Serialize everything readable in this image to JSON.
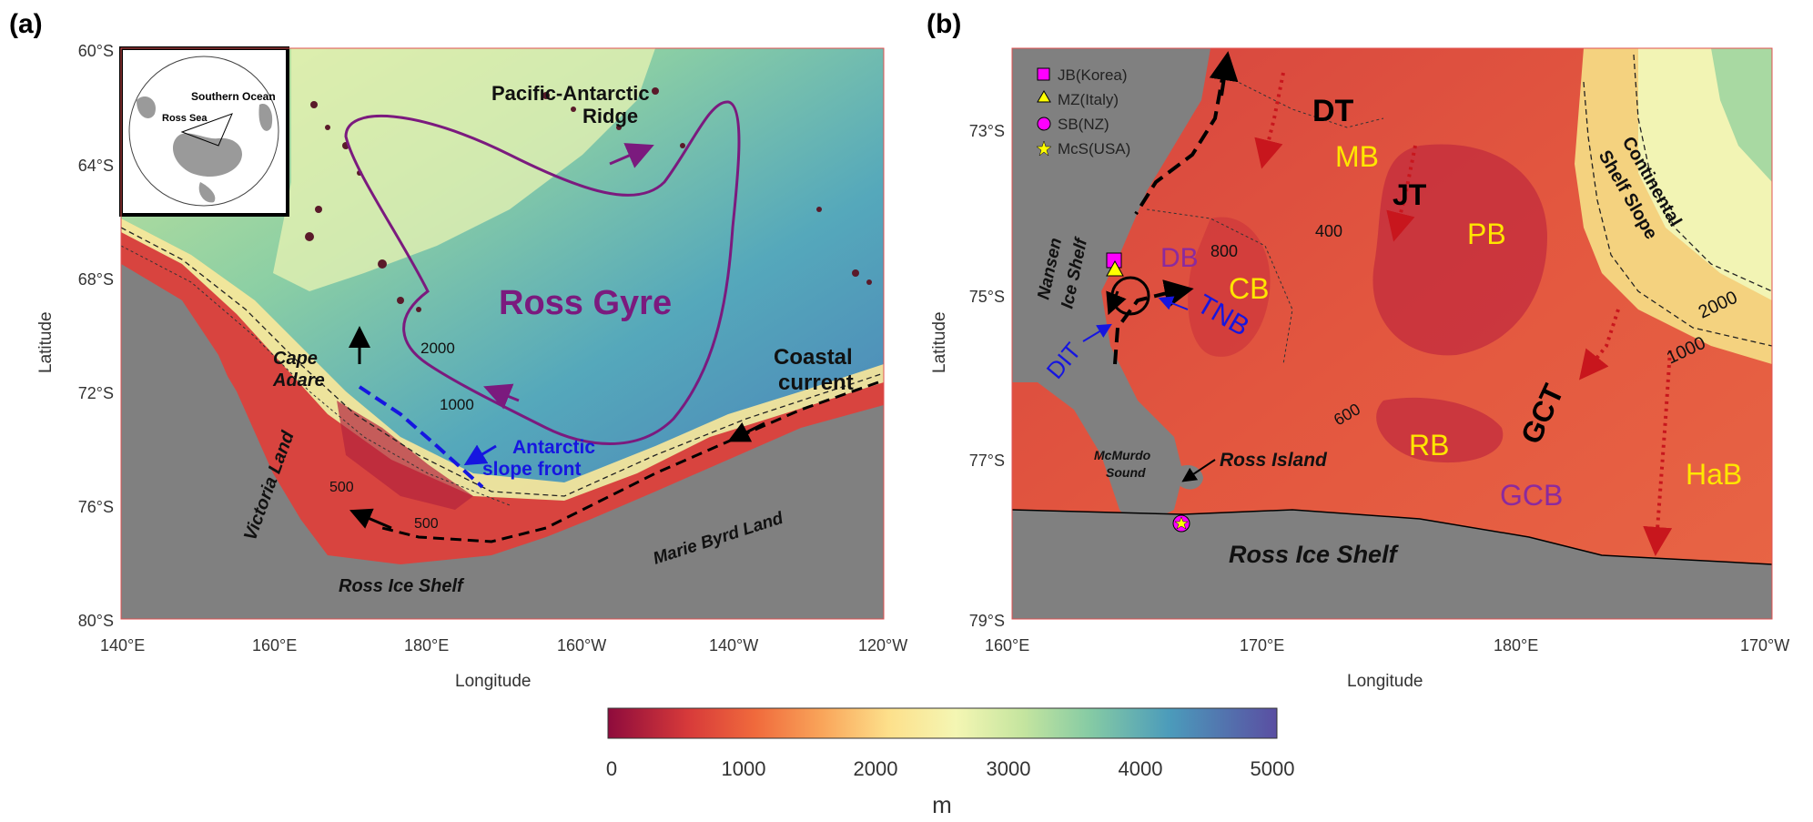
{
  "panel_a": {
    "label": "(a)",
    "xlabel": "Longitude",
    "ylabel": "Latitude",
    "x_ticks": [
      "140°E",
      "160°E",
      "180°E",
      "160°W",
      "140°W",
      "120°W"
    ],
    "y_ticks": [
      "60°S",
      "64°S",
      "68°S",
      "72°S",
      "76°S",
      "80°S"
    ],
    "inset": {
      "southern_ocean": "Southern Ocean",
      "ross_sea": "Ross Sea"
    },
    "labels": {
      "ross_gyre": "Ross Gyre",
      "pacific_antarctic": "Pacific-Antarctic",
      "ridge": "Ridge",
      "coastal": "Coastal",
      "current": "current",
      "antarctic": "Antarctic",
      "slope_front": "slope front",
      "cape": "Cape",
      "adare": "Adare",
      "victoria_land": "Victoria Land",
      "ross_ice_shelf": "Ross Ice Shelf",
      "marie_byrd_land": "Marie Byrd Land",
      "c2000": "2000",
      "c1000": "1000",
      "c500a": "500",
      "c500b": "500"
    }
  },
  "panel_b": {
    "label": "(b)",
    "xlabel": "Longitude",
    "ylabel": "Latitude",
    "x_ticks": [
      "160°E",
      "170°E",
      "180°E",
      "170°W"
    ],
    "y_ticks": [
      "73°S",
      "75°S",
      "77°S",
      "79°S"
    ],
    "legend": [
      {
        "name": "JB(Korea)",
        "color": "#ff00ff",
        "shape": "square"
      },
      {
        "name": "MZ(Italy)",
        "color": "#ffff00",
        "shape": "triangle"
      },
      {
        "name": "SB(NZ)",
        "color": "#ff00ff",
        "shape": "circle"
      },
      {
        "name": "McS(USA)",
        "color": "#ffff00",
        "shape": "star"
      }
    ],
    "labels": {
      "dt": "DT",
      "mb": "MB",
      "jt": "JT",
      "pb": "PB",
      "db": "DB",
      "cb": "CB",
      "tnb": "TNB",
      "dit": "DIT",
      "rb": "RB",
      "gct": "GCT",
      "gcb": "GCB",
      "hab": "HaB",
      "nansen1": "Nansen",
      "nansen2": "Ice Shelf",
      "continental1": "Continental",
      "continental2": "Shelf Slope",
      "mcmurdo1": "McMurdo",
      "mcmurdo2": "Sound",
      "ross_island": "Ross Island",
      "ross_ice_shelf": "Ross Ice Shelf",
      "c800": "800",
      "c400": "400",
      "c600": "600",
      "c2000": "2000",
      "c1000": "1000"
    }
  },
  "colorbar": {
    "ticks": [
      "0",
      "1000",
      "2000",
      "3000",
      "4000",
      "5000"
    ],
    "unit": "m"
  }
}
